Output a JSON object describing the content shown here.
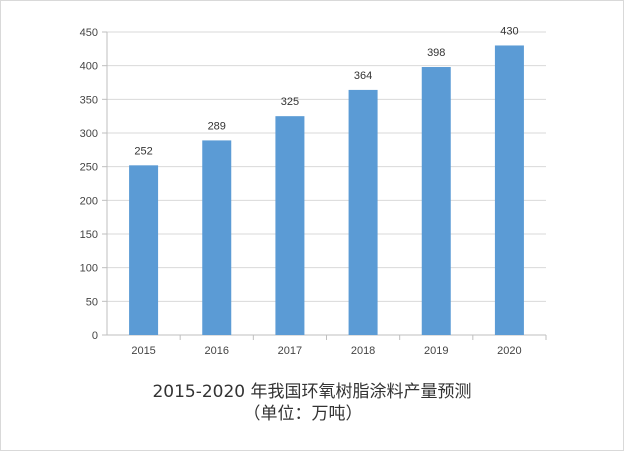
{
  "chart_data": {
    "type": "bar",
    "title": "2015-2020  年我国环氧树脂涂料产量预测",
    "subtitle": "（单位：万吨）",
    "categories": [
      "2015",
      "2016",
      "2017",
      "2018",
      "2019",
      "2020"
    ],
    "values": [
      252,
      289,
      325,
      364,
      398,
      430
    ],
    "data_labels": [
      "252",
      "289",
      "325",
      "364",
      "398",
      "430"
    ],
    "y_ticks": [
      "0",
      "50",
      "100",
      "150",
      "200",
      "250",
      "300",
      "350",
      "400",
      "450"
    ],
    "ylim": [
      0,
      450
    ],
    "xlabel": "",
    "ylabel": "",
    "grid": true,
    "legend": "none",
    "colors": {
      "bar": "#5b9bd5",
      "grid": "#d9d9d9",
      "axis": "#bfbfbf"
    }
  }
}
